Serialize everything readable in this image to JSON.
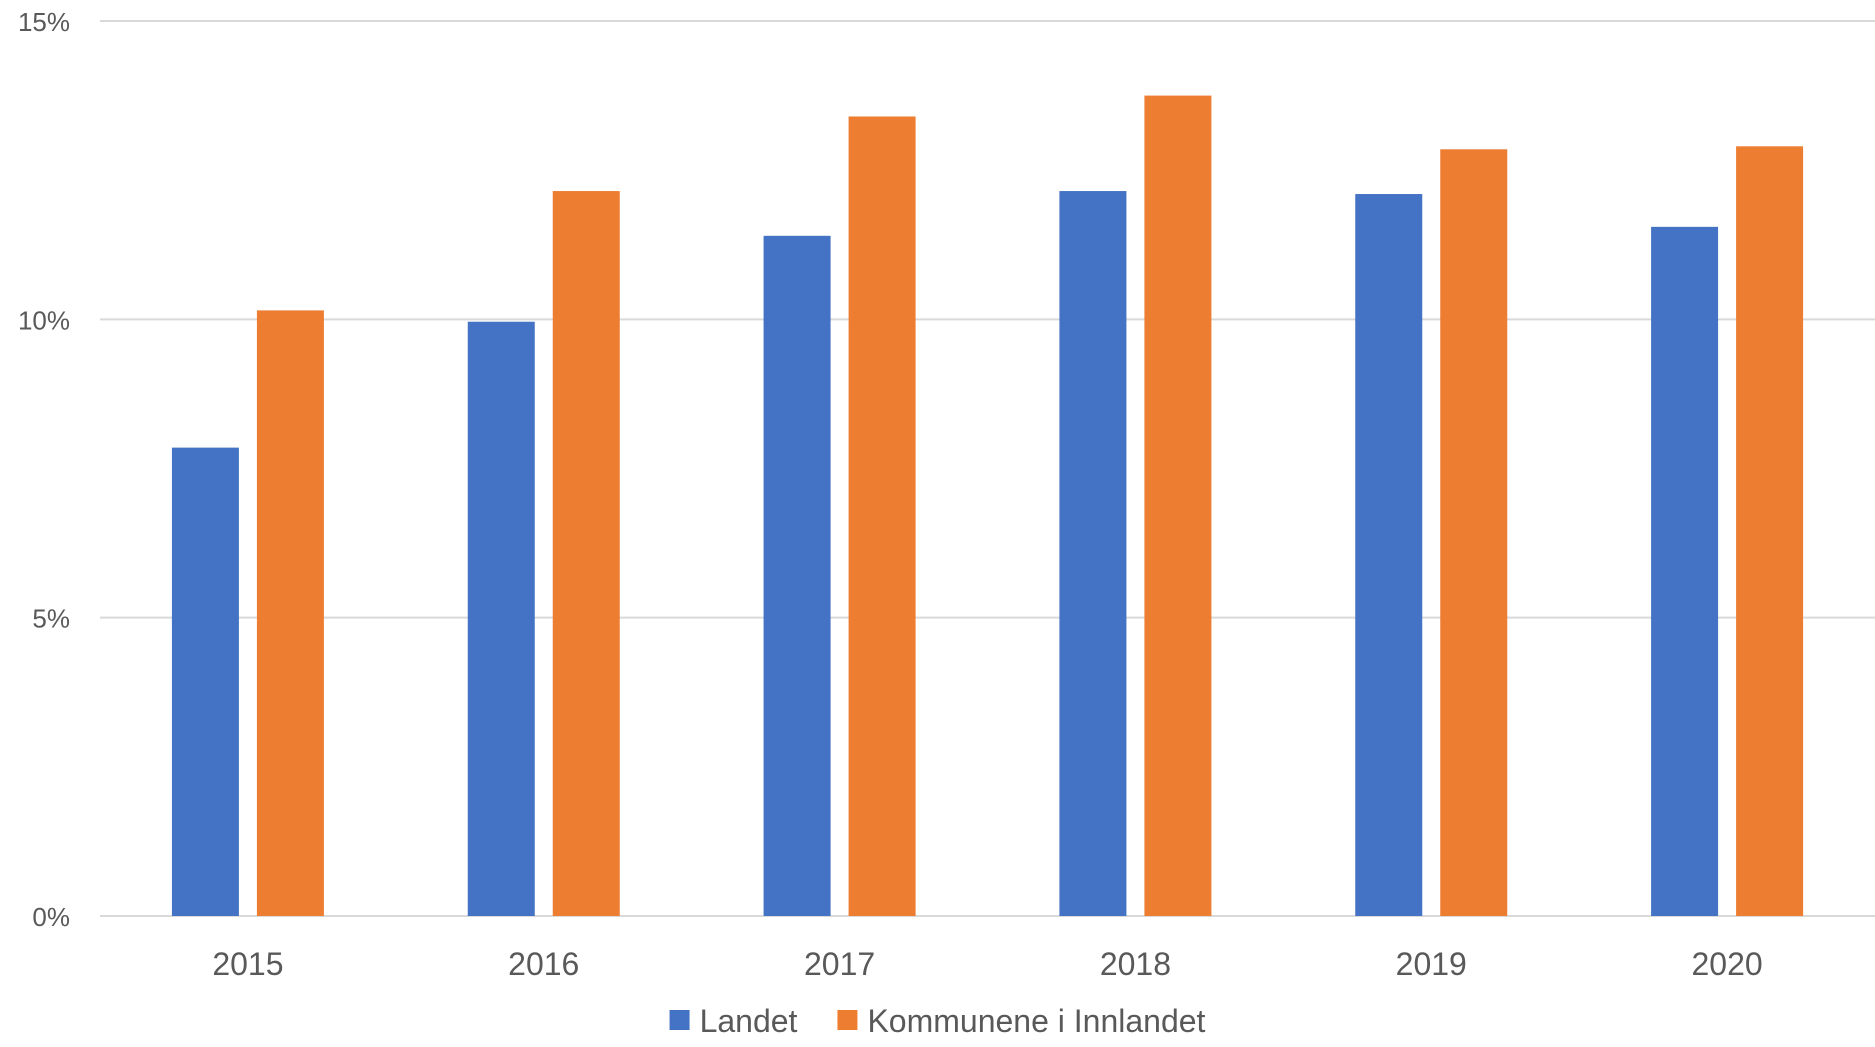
{
  "chart_data": {
    "type": "bar",
    "title": "",
    "xlabel": "",
    "ylabel": "",
    "categories": [
      "2015",
      "2016",
      "2017",
      "2018",
      "2019",
      "2020"
    ],
    "series": [
      {
        "name": "Landet",
        "color": "#4472C4",
        "values": [
          7.85,
          9.96,
          11.4,
          12.15,
          12.1,
          11.55
        ]
      },
      {
        "name": "Kommunene i Innlandet",
        "color": "#ED7D31",
        "values": [
          10.15,
          12.15,
          13.4,
          13.75,
          12.85,
          12.9
        ]
      }
    ],
    "ylim": [
      0,
      15
    ],
    "yticks": [
      0,
      5,
      10,
      15
    ],
    "ytick_labels": [
      "0%",
      "5%",
      "10%",
      "15%"
    ],
    "grid": true,
    "legend": "bottom-center"
  }
}
